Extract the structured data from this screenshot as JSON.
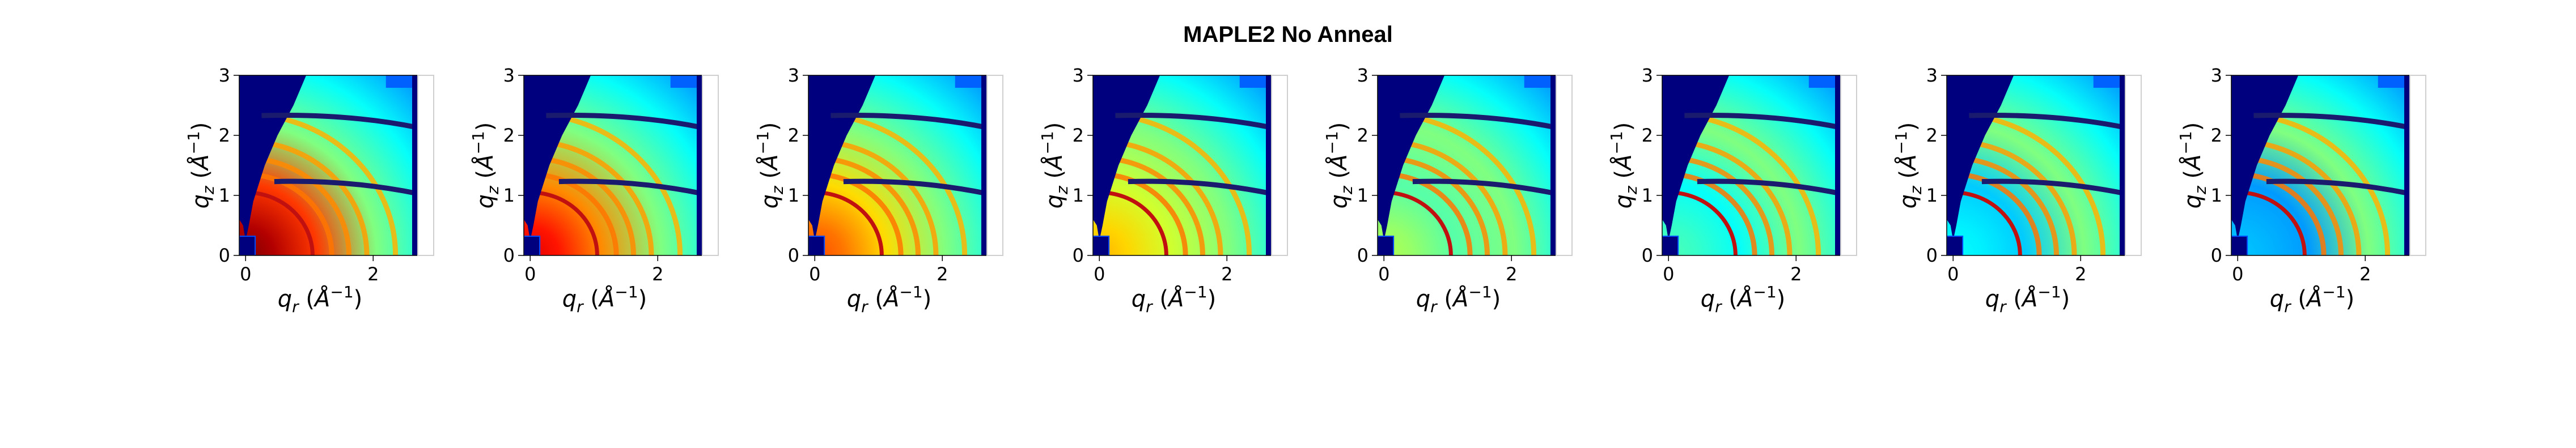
{
  "figure": {
    "title": "MAPLE2 No Anneal"
  },
  "chart_data": {
    "type": "heatmap",
    "colormap": "jet",
    "panel_count": 8,
    "xlabel": "q_r (Å^-1)",
    "ylabel": "q_z (Å^-1)",
    "xlim": [
      -0.1,
      2.7
    ],
    "ylim": [
      0,
      3
    ],
    "x_ticks": [
      0,
      2
    ],
    "y_ticks": [
      0,
      1,
      2,
      3
    ],
    "x_tick_labels": [
      "0",
      "2"
    ],
    "y_tick_labels": [
      "0",
      "1",
      "2",
      "3"
    ],
    "grid": false,
    "overlay_ring_qs": [
      1.05,
      1.35,
      1.62,
      1.9,
      2.35
    ],
    "detector_gap_qz": [
      1.15,
      2.25
    ],
    "intensity_center_by_panel": [
      1.0,
      0.9,
      0.8,
      0.7,
      0.55,
      0.45,
      0.38,
      0.32
    ]
  },
  "colors": {
    "masked": "#00007f",
    "gap": "#1a1a6e",
    "ring": "#c01010",
    "text": "#000000"
  }
}
